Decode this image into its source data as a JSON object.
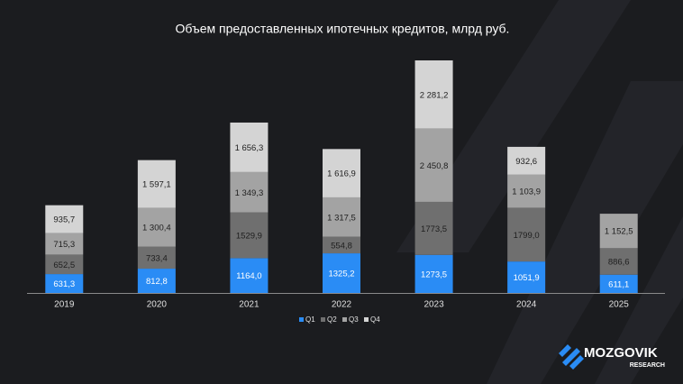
{
  "chart_data": {
    "type": "stacked-bar",
    "title": "Объем предоставленных ипотечных кредитов, млрд руб.",
    "categories": [
      "2019",
      "2020",
      "2021",
      "2022",
      "2023",
      "2024",
      "2025"
    ],
    "series": [
      {
        "name": "Q1",
        "color": "#2a8cf5",
        "values": [
          631.3,
          812.8,
          1164.0,
          1325.2,
          1273.5,
          1051.9,
          611.1
        ],
        "value_labels": [
          "631,3",
          "812,8",
          "1164,0",
          "1325,2",
          "1273,5",
          "1051,9",
          "611,1"
        ]
      },
      {
        "name": "Q2",
        "color": "#6f6f6f",
        "values": [
          652.5,
          733.4,
          1529.9,
          554.8,
          1773.5,
          1799.0,
          886.6
        ],
        "value_labels": [
          "652,5",
          "733,4",
          "1529,9",
          "554,8",
          "1773,5",
          "1799,0",
          "886,6"
        ]
      },
      {
        "name": "Q3",
        "color": "#a3a3a3",
        "values": [
          715.3,
          1300.4,
          1349.3,
          1317.5,
          2450.8,
          1103.9,
          1152.5
        ],
        "value_labels": [
          "715,3",
          "1 300,4",
          "1 349,3",
          "1 317,5",
          "2 450,8",
          "1 103,9",
          "1 152,5"
        ]
      },
      {
        "name": "Q4",
        "color": "#d4d4d4",
        "values": [
          935.7,
          1597.1,
          1656.3,
          1616.9,
          2281.2,
          932.6,
          null
        ],
        "value_labels": [
          "935,7",
          "1 597,1",
          "1 656,3",
          "1 616,9",
          "2 281,2",
          "932,6",
          null
        ]
      }
    ],
    "legend": "bottom"
  },
  "brand": {
    "name": "MOZGOVIK",
    "sub": "RESEARCH"
  }
}
